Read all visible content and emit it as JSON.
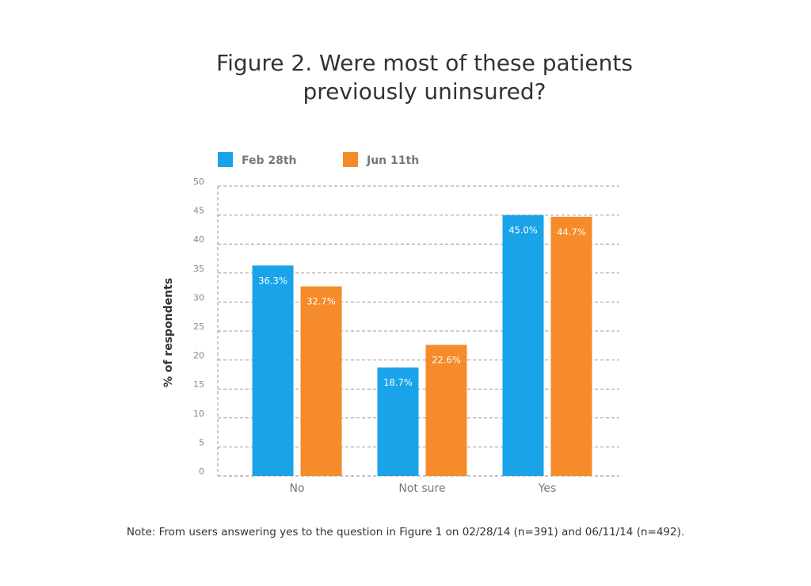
{
  "title_lines": [
    "Figure 2. Were most of these patients",
    "previously uninsured?"
  ],
  "note": "Note: From users answering yes to the question in Figure 1 on 02/28/14 (n=391) and 06/11/14 (n=492).",
  "chart_data": {
    "type": "bar",
    "title": "Figure 2. Were most of these patients previously uninsured?",
    "categories": [
      "No",
      "Not sure",
      "Yes"
    ],
    "series": [
      {
        "name": "Feb 28th",
        "color": "#1aa3e8",
        "values": [
          36.3,
          18.7,
          45.0
        ],
        "labels": [
          "36.3%",
          "18.7%",
          "45.0%"
        ]
      },
      {
        "name": "Jun 11th",
        "color": "#f58b2a",
        "values": [
          32.7,
          22.6,
          44.7
        ],
        "labels": [
          "32.7%",
          "22.6%",
          "44.7%"
        ]
      }
    ],
    "xlabel": "",
    "ylabel": "% of respondents",
    "ylim": [
      0,
      50
    ],
    "yticks": [
      0,
      5,
      10,
      15,
      20,
      25,
      30,
      35,
      40,
      45,
      50
    ],
    "grid": true,
    "legend_position": "top-left"
  }
}
